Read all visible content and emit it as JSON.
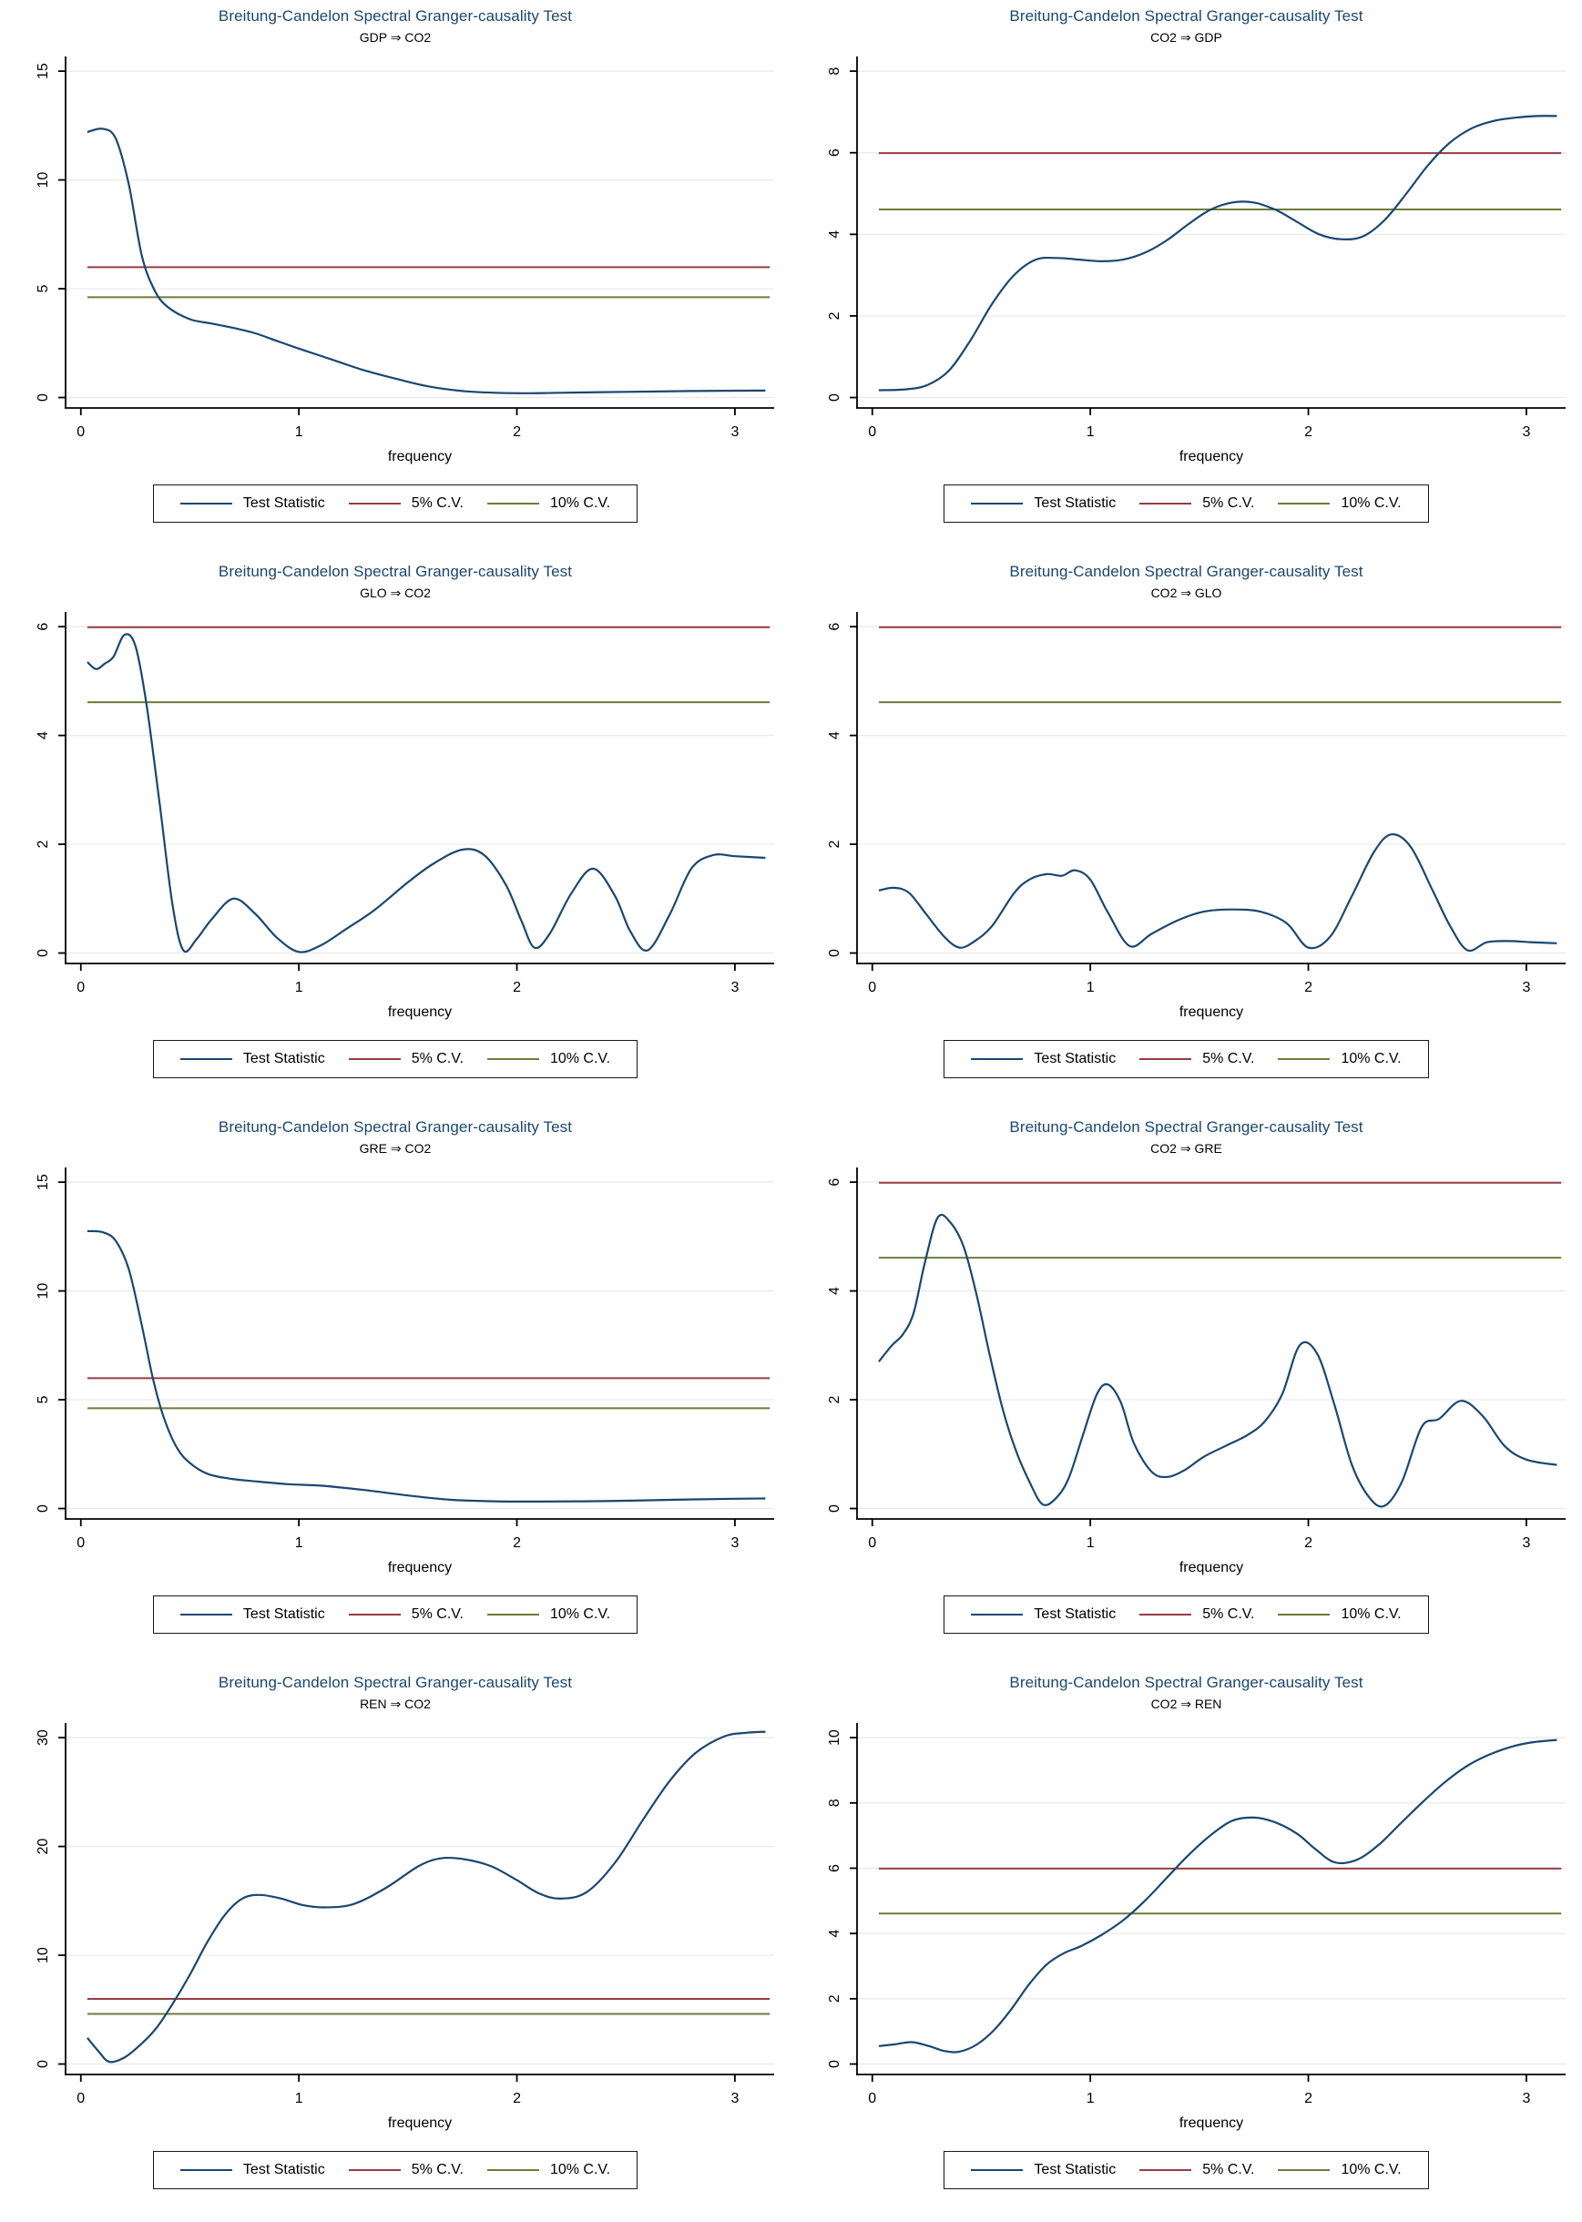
{
  "colors": {
    "title": "#1a476f",
    "test_statistic": "#1a476f",
    "cv5": "#963c42",
    "cv10": "#6e7b3a",
    "grid": "#e9e9e9",
    "axis": "#000000",
    "legend_border": "#181818"
  },
  "legend_keys": [
    "test_statistic",
    "cv5",
    "cv10"
  ],
  "chart_data": [
    {
      "type": "line",
      "title": "Breitung-Candelon Spectral Granger-causality Test",
      "subtitle": "GDP ⇒ CO2",
      "xlabel": "frequency",
      "xlim": [
        0,
        3.14
      ],
      "ylim": [
        0,
        15
      ],
      "xticks": [
        0,
        1,
        2,
        3
      ],
      "yticks": [
        0,
        5,
        10,
        15
      ],
      "cv5": 5.99,
      "cv10": 4.61,
      "legend": [
        "Test Statistic",
        "5% C.V.",
        "10% C.V."
      ],
      "legend_position": "bottom",
      "series": [
        {
          "name": "Test Statistic",
          "x": [
            0.03,
            0.1,
            0.16,
            0.22,
            0.28,
            0.34,
            0.4,
            0.5,
            0.6,
            0.7,
            0.8,
            0.9,
            1.0,
            1.15,
            1.3,
            1.45,
            1.6,
            1.75,
            1.9,
            2.05,
            2.2,
            2.5,
            2.8,
            3.14
          ],
          "y": [
            12.2,
            12.35,
            11.9,
            9.8,
            6.5,
            4.9,
            4.15,
            3.6,
            3.4,
            3.2,
            2.95,
            2.6,
            2.25,
            1.75,
            1.25,
            0.85,
            0.5,
            0.3,
            0.22,
            0.2,
            0.22,
            0.26,
            0.3,
            0.32
          ]
        }
      ]
    },
    {
      "type": "line",
      "title": "Breitung-Candelon Spectral Granger-causality Test",
      "subtitle": "CO2 ⇒ GDP",
      "xlabel": "frequency",
      "xlim": [
        0,
        3.14
      ],
      "ylim": [
        0,
        8
      ],
      "xticks": [
        0,
        1,
        2,
        3
      ],
      "yticks": [
        0,
        2,
        4,
        6,
        8
      ],
      "cv5": 5.99,
      "cv10": 4.61,
      "legend": [
        "Test Statistic",
        "5% C.V.",
        "10% C.V."
      ],
      "legend_position": "bottom",
      "series": [
        {
          "name": "Test Statistic",
          "x": [
            0.03,
            0.15,
            0.25,
            0.35,
            0.45,
            0.55,
            0.65,
            0.75,
            0.85,
            0.95,
            1.05,
            1.15,
            1.25,
            1.35,
            1.45,
            1.55,
            1.65,
            1.75,
            1.85,
            1.95,
            2.05,
            2.15,
            2.25,
            2.35,
            2.45,
            2.55,
            2.65,
            2.75,
            2.85,
            2.95,
            3.05,
            3.14
          ],
          "y": [
            0.18,
            0.2,
            0.3,
            0.65,
            1.4,
            2.3,
            3.0,
            3.38,
            3.42,
            3.38,
            3.34,
            3.38,
            3.55,
            3.85,
            4.25,
            4.6,
            4.78,
            4.78,
            4.6,
            4.3,
            4.0,
            3.88,
            3.95,
            4.35,
            5.0,
            5.7,
            6.25,
            6.6,
            6.78,
            6.86,
            6.9,
            6.9
          ]
        }
      ]
    },
    {
      "type": "line",
      "title": "Breitung-Candelon Spectral Granger-causality Test",
      "subtitle": "GLO ⇒ CO2",
      "xlabel": "frequency",
      "xlim": [
        0,
        3.14
      ],
      "ylim": [
        0,
        6
      ],
      "xticks": [
        0,
        1,
        2,
        3
      ],
      "yticks": [
        0,
        2,
        4,
        6
      ],
      "cv5": 5.99,
      "cv10": 4.61,
      "legend": [
        "Test Statistic",
        "5% C.V.",
        "10% C.V."
      ],
      "legend_position": "bottom",
      "series": [
        {
          "name": "Test Statistic",
          "x": [
            0.03,
            0.07,
            0.11,
            0.15,
            0.2,
            0.25,
            0.3,
            0.36,
            0.42,
            0.47,
            0.53,
            0.6,
            0.7,
            0.8,
            0.9,
            1.0,
            1.1,
            1.22,
            1.35,
            1.5,
            1.62,
            1.75,
            1.85,
            1.95,
            2.02,
            2.08,
            2.15,
            2.25,
            2.35,
            2.45,
            2.52,
            2.6,
            2.7,
            2.8,
            2.9,
            3.0,
            3.14
          ],
          "y": [
            5.35,
            5.22,
            5.32,
            5.45,
            5.85,
            5.65,
            4.6,
            2.8,
            0.9,
            0.05,
            0.25,
            0.62,
            1.0,
            0.72,
            0.28,
            0.02,
            0.14,
            0.45,
            0.8,
            1.3,
            1.65,
            1.9,
            1.8,
            1.25,
            0.6,
            0.1,
            0.35,
            1.1,
            1.55,
            1.05,
            0.4,
            0.05,
            0.7,
            1.55,
            1.8,
            1.78,
            1.75
          ]
        }
      ]
    },
    {
      "type": "line",
      "title": "Breitung-Candelon Spectral Granger-causality Test",
      "subtitle": "CO2 ⇒ GLO",
      "xlabel": "frequency",
      "xlim": [
        0,
        3.14
      ],
      "ylim": [
        0,
        6
      ],
      "xticks": [
        0,
        1,
        2,
        3
      ],
      "yticks": [
        0,
        2,
        4,
        6
      ],
      "cv5": 5.99,
      "cv10": 4.61,
      "legend": [
        "Test Statistic",
        "5% C.V.",
        "10% C.V."
      ],
      "legend_position": "bottom",
      "series": [
        {
          "name": "Test Statistic",
          "x": [
            0.03,
            0.1,
            0.17,
            0.25,
            0.33,
            0.4,
            0.47,
            0.55,
            0.65,
            0.72,
            0.8,
            0.87,
            0.93,
            1.0,
            1.08,
            1.18,
            1.28,
            1.4,
            1.52,
            1.65,
            1.78,
            1.9,
            2.0,
            2.1,
            2.2,
            2.3,
            2.38,
            2.47,
            2.57,
            2.65,
            2.73,
            2.82,
            2.92,
            3.02,
            3.14
          ],
          "y": [
            1.15,
            1.2,
            1.1,
            0.7,
            0.3,
            0.1,
            0.22,
            0.5,
            1.1,
            1.35,
            1.45,
            1.42,
            1.52,
            1.35,
            0.75,
            0.13,
            0.35,
            0.6,
            0.76,
            0.8,
            0.76,
            0.55,
            0.1,
            0.3,
            1.05,
            1.85,
            2.18,
            1.95,
            1.15,
            0.5,
            0.05,
            0.2,
            0.22,
            0.2,
            0.18
          ]
        }
      ]
    },
    {
      "type": "line",
      "title": "Breitung-Candelon Spectral Granger-causality Test",
      "subtitle": "GRE ⇒ CO2",
      "xlabel": "frequency",
      "xlim": [
        0,
        3.14
      ],
      "ylim": [
        0,
        15
      ],
      "xticks": [
        0,
        1,
        2,
        3
      ],
      "yticks": [
        0,
        5,
        10,
        15
      ],
      "cv5": 5.99,
      "cv10": 4.61,
      "legend": [
        "Test Statistic",
        "5% C.V.",
        "10% C.V."
      ],
      "legend_position": "bottom",
      "series": [
        {
          "name": "Test Statistic",
          "x": [
            0.03,
            0.1,
            0.16,
            0.22,
            0.28,
            0.33,
            0.38,
            0.44,
            0.5,
            0.58,
            0.68,
            0.8,
            0.95,
            1.1,
            1.3,
            1.5,
            1.7,
            1.9,
            2.1,
            2.4,
            2.7,
            3.0,
            3.14
          ],
          "y": [
            12.75,
            12.7,
            12.3,
            11.0,
            8.4,
            6.0,
            4.2,
            2.8,
            2.1,
            1.6,
            1.38,
            1.25,
            1.12,
            1.05,
            0.85,
            0.6,
            0.4,
            0.33,
            0.32,
            0.34,
            0.4,
            0.45,
            0.46
          ]
        }
      ]
    },
    {
      "type": "line",
      "title": "Breitung-Candelon Spectral Granger-causality Test",
      "subtitle": "CO2 ⇒ GRE",
      "xlabel": "frequency",
      "xlim": [
        0,
        3.14
      ],
      "ylim": [
        0,
        6
      ],
      "xticks": [
        0,
        1,
        2,
        3
      ],
      "yticks": [
        0,
        2,
        4,
        6
      ],
      "cv5": 5.99,
      "cv10": 4.61,
      "legend": [
        "Test Statistic",
        "5% C.V.",
        "10% C.V."
      ],
      "legend_position": "bottom",
      "series": [
        {
          "name": "Test Statistic",
          "x": [
            0.03,
            0.09,
            0.14,
            0.19,
            0.24,
            0.3,
            0.36,
            0.42,
            0.48,
            0.54,
            0.6,
            0.66,
            0.72,
            0.78,
            0.84,
            0.9,
            0.97,
            1.03,
            1.08,
            1.14,
            1.2,
            1.28,
            1.35,
            1.43,
            1.52,
            1.62,
            1.72,
            1.8,
            1.88,
            1.96,
            2.04,
            2.12,
            2.2,
            2.28,
            2.35,
            2.43,
            2.52,
            2.6,
            2.7,
            2.8,
            2.9,
            3.0,
            3.14
          ],
          "y": [
            2.7,
            3.0,
            3.2,
            3.6,
            4.5,
            5.35,
            5.25,
            4.8,
            3.9,
            2.8,
            1.8,
            1.05,
            0.5,
            0.08,
            0.18,
            0.55,
            1.4,
            2.1,
            2.28,
            1.95,
            1.2,
            0.68,
            0.58,
            0.7,
            0.95,
            1.15,
            1.35,
            1.6,
            2.1,
            3.0,
            2.85,
            1.9,
            0.8,
            0.2,
            0.05,
            0.5,
            1.5,
            1.65,
            1.98,
            1.7,
            1.15,
            0.9,
            0.8
          ]
        }
      ]
    },
    {
      "type": "line",
      "title": "Breitung-Candelon Spectral Granger-causality Test",
      "subtitle": "REN ⇒ CO2",
      "xlabel": "frequency",
      "xlim": [
        0,
        3.14
      ],
      "ylim": [
        0,
        30
      ],
      "xticks": [
        0,
        1,
        2,
        3
      ],
      "yticks": [
        0,
        10,
        20,
        30
      ],
      "cv5": 5.99,
      "cv10": 4.61,
      "legend": [
        "Test Statistic",
        "5% C.V.",
        "10% C.V."
      ],
      "legend_position": "bottom",
      "series": [
        {
          "name": "Test Statistic",
          "x": [
            0.03,
            0.08,
            0.13,
            0.2,
            0.28,
            0.35,
            0.42,
            0.5,
            0.58,
            0.66,
            0.74,
            0.82,
            0.92,
            1.02,
            1.12,
            1.25,
            1.4,
            1.55,
            1.65,
            1.75,
            1.88,
            2.0,
            2.1,
            2.2,
            2.32,
            2.45,
            2.58,
            2.7,
            2.82,
            2.95,
            3.05,
            3.14
          ],
          "y": [
            2.4,
            1.2,
            0.2,
            0.6,
            1.9,
            3.4,
            5.5,
            8.2,
            11.2,
            13.7,
            15.2,
            15.55,
            15.2,
            14.6,
            14.4,
            14.7,
            16.2,
            18.2,
            18.9,
            18.85,
            18.2,
            16.9,
            15.7,
            15.2,
            15.8,
            18.5,
            22.5,
            26.0,
            28.6,
            30.1,
            30.45,
            30.55
          ]
        }
      ]
    },
    {
      "type": "line",
      "title": "Breitung-Candelon Spectral Granger-causality Test",
      "subtitle": "CO2 ⇒ REN",
      "xlabel": "frequency",
      "xlim": [
        0,
        3.14
      ],
      "ylim": [
        0,
        10
      ],
      "xticks": [
        0,
        1,
        2,
        3
      ],
      "yticks": [
        0,
        2,
        4,
        6,
        8,
        10
      ],
      "cv5": 5.99,
      "cv10": 4.61,
      "legend": [
        "Test Statistic",
        "5% C.V.",
        "10% C.V."
      ],
      "legend_position": "bottom",
      "series": [
        {
          "name": "Test Statistic",
          "x": [
            0.03,
            0.1,
            0.18,
            0.26,
            0.33,
            0.4,
            0.48,
            0.56,
            0.64,
            0.72,
            0.8,
            0.88,
            0.96,
            1.05,
            1.15,
            1.25,
            1.35,
            1.45,
            1.55,
            1.65,
            1.75,
            1.85,
            1.95,
            2.03,
            2.12,
            2.22,
            2.32,
            2.42,
            2.52,
            2.62,
            2.72,
            2.82,
            2.92,
            3.02,
            3.14
          ],
          "y": [
            0.55,
            0.6,
            0.67,
            0.55,
            0.4,
            0.38,
            0.6,
            1.05,
            1.7,
            2.45,
            3.05,
            3.4,
            3.62,
            3.95,
            4.4,
            5.0,
            5.7,
            6.4,
            7.0,
            7.45,
            7.55,
            7.4,
            7.05,
            6.6,
            6.18,
            6.25,
            6.7,
            7.35,
            8.0,
            8.6,
            9.1,
            9.45,
            9.7,
            9.85,
            9.93
          ]
        }
      ]
    }
  ]
}
